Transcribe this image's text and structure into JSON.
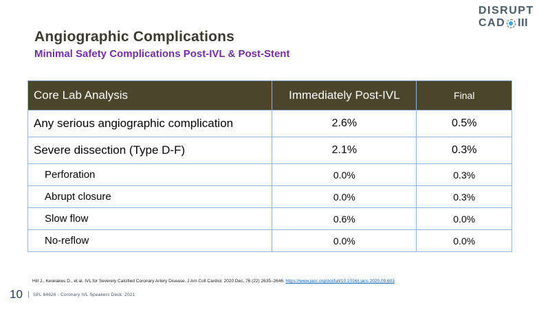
{
  "slide": {
    "title": "Angiographic Complications",
    "subtitle": "Minimal Safety Complications Post-IVL & Post-Stent"
  },
  "logo": {
    "line1": "DISRUPT",
    "line2": "CAD",
    "numeral": "III",
    "dot_icon": "circle-dot-icon"
  },
  "chart_data": {
    "type": "table",
    "title": "Angiographic Complications",
    "columns": [
      "Core Lab Analysis",
      "Immediately Post-IVL",
      "Final"
    ],
    "rows": [
      {
        "label": "Any serious angiographic complication",
        "post_ivl": "2.6%",
        "final": "0.5%",
        "indent": false
      },
      {
        "label": "Severe dissection (Type D-F)",
        "post_ivl": "2.1%",
        "final": "0.3%",
        "indent": false
      },
      {
        "label": "Perforation",
        "post_ivl": "0.0%",
        "final": "0.3%",
        "indent": true
      },
      {
        "label": "Abrupt closure",
        "post_ivl": "0.0%",
        "final": "0.3%",
        "indent": true
      },
      {
        "label": "Slow flow",
        "post_ivl": "0.6%",
        "final": "0.0%",
        "indent": true
      },
      {
        "label": "No-reflow",
        "post_ivl": "0.0%",
        "final": "0.0%",
        "indent": true
      }
    ]
  },
  "footnote": {
    "citation": "Hill J., Kereiakes D., et al. IVL for Severely Calcified Coronary Artery Disease. J Am Coll Cardiol. 2020 Dec, 76 (22) 2635–2646.",
    "link_text": "https://www.jacc.org/doi/full/10.1016/j.jacc.2020.09.603"
  },
  "footer": {
    "page_number": "10",
    "label": "SPL 64626 - Coronary IVL Speakers Deck: 2021"
  },
  "colors": {
    "header_background": "#4a452b",
    "table_border": "#95b3d7",
    "title_text": "#3d3b30",
    "subtitle_text": "#7030a0",
    "link_blue": "#0563c1",
    "footer_navy": "#44546a",
    "page_number_navy": "#1f3864",
    "logo_slate": "#4b5b66",
    "logo_dot_blue": "#29abe2"
  }
}
